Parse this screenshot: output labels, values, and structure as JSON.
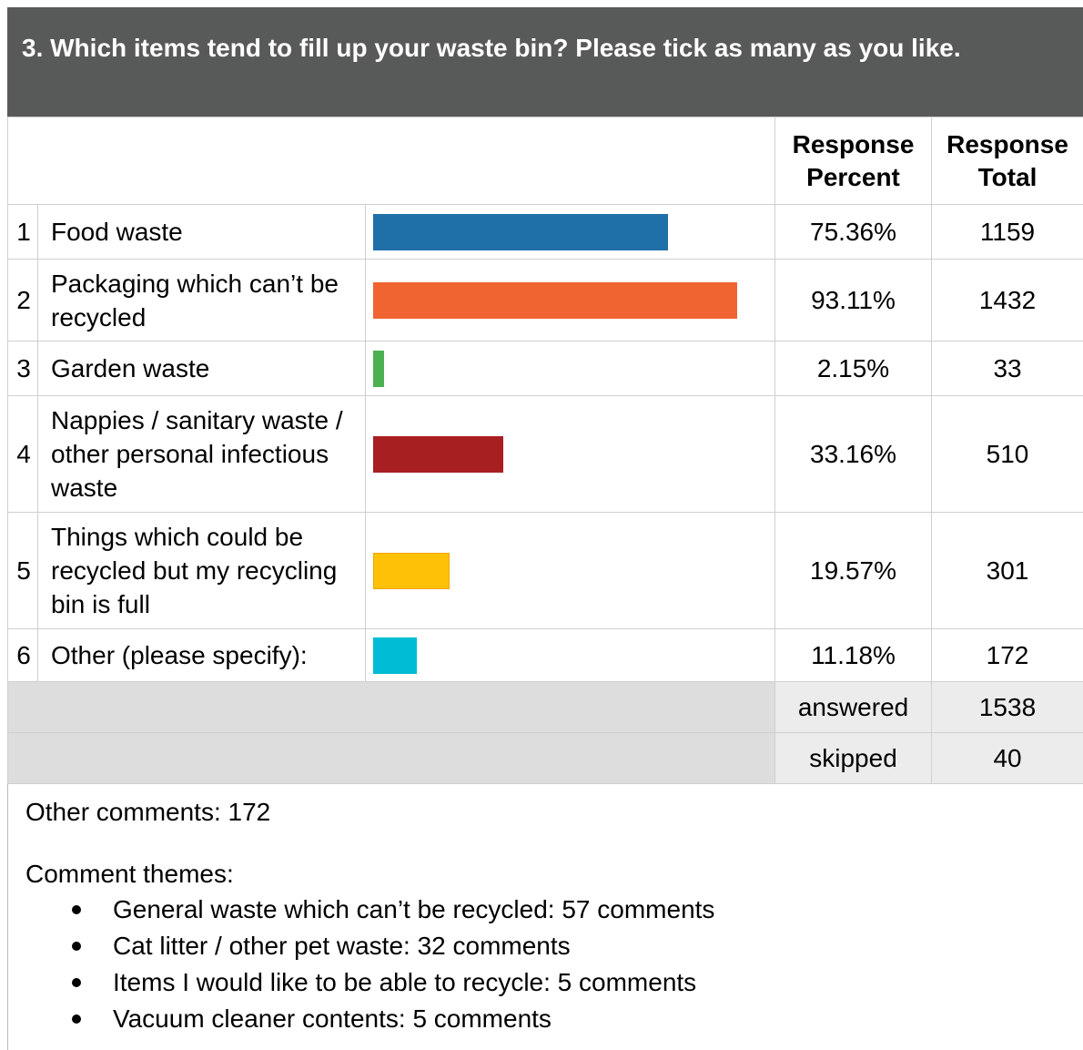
{
  "question": {
    "title": "3. Which items tend to fill up your waste bin? Please tick as many as you like."
  },
  "table": {
    "headers": {
      "percent": "Response Percent",
      "total": "Response Total"
    },
    "rows": [
      {
        "num": "1",
        "label": "Food waste",
        "percent": "75.36%",
        "total": "1159",
        "fraction": 0.7536,
        "color": "#1f6fa8"
      },
      {
        "num": "2",
        "label": "Packaging which can’t be recycled",
        "percent": "93.11%",
        "total": "1432",
        "fraction": 0.9311,
        "color": "#f06431"
      },
      {
        "num": "3",
        "label": "Garden waste",
        "percent": "2.15%",
        "total": "33",
        "fraction": 0.0215,
        "color": "#4caf50"
      },
      {
        "num": "4",
        "label": "Nappies / sanitary waste / other personal infectious waste",
        "percent": "33.16%",
        "total": "510",
        "fraction": 0.3316,
        "color": "#a81f22"
      },
      {
        "num": "5",
        "label": "Things which could be recycled but my recycling bin is full",
        "percent": "19.57%",
        "total": "301",
        "fraction": 0.1957,
        "color": "#ffc107"
      },
      {
        "num": "6",
        "label": "Other (please specify):",
        "percent": "11.18%",
        "total": "172",
        "fraction": 0.1118,
        "color": "#00bcd4"
      }
    ],
    "answered_label": "answered",
    "answered_value": "1538",
    "skipped_label": "skipped",
    "skipped_value": "40"
  },
  "comments": {
    "other": "Other comments: 172",
    "themes_title": "Comment themes:",
    "themes": [
      "General waste which can’t be recycled: 57 comments",
      "Cat litter / other pet waste: 32 comments",
      "Items I would like to be able to recycle: 5 comments",
      "Vacuum cleaner contents: 5 comments"
    ]
  }
}
